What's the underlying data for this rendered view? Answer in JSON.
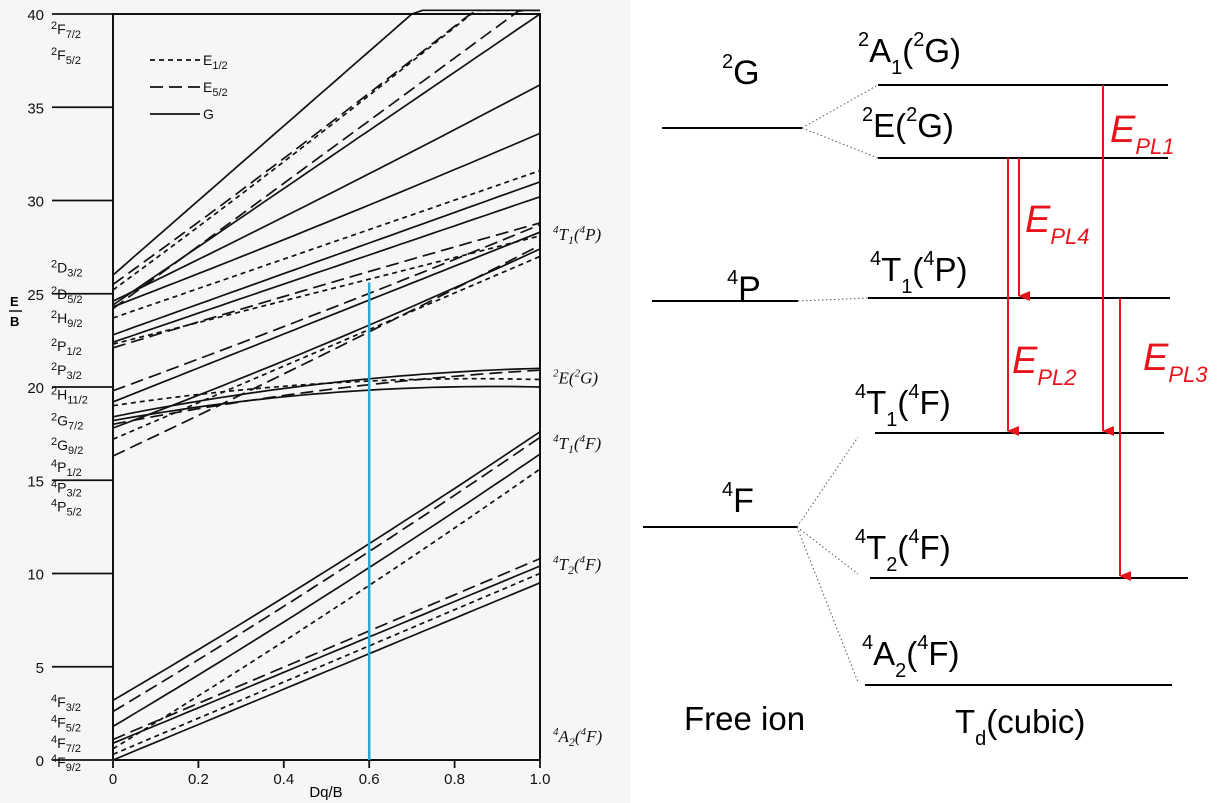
{
  "tanabe_sugano": {
    "y_axis": {
      "label_top": "E",
      "label_bottom": "B",
      "ticks": [
        "0",
        "5",
        "10",
        "15",
        "20",
        "25",
        "30",
        "35",
        "40"
      ],
      "range": [
        0,
        40
      ]
    },
    "x_axis": {
      "label": "Dq/B",
      "ticks": [
        "0",
        "0.2",
        "0.4",
        "0.6",
        "0.8",
        "1.0"
      ],
      "range": [
        0,
        1
      ]
    },
    "legend": [
      {
        "label": "E1/2",
        "style": "short-dash"
      },
      {
        "label": "E5/2",
        "style": "long-dash"
      },
      {
        "label": "G",
        "style": "solid"
      }
    ],
    "left_term_labels": [
      {
        "main": "2F",
        "sub": "7/2",
        "energy": 39.2
      },
      {
        "main": "2F",
        "sub": "5/2",
        "energy": 37.8
      },
      {
        "main": "2D",
        "sub": "3/2",
        "energy": 26.4
      },
      {
        "main": "2D",
        "sub": "5/2",
        "energy": 25.0
      },
      {
        "main": "2H",
        "sub": "9/2",
        "energy": 23.7
      },
      {
        "main": "2P",
        "sub": "1/2",
        "energy": 22.2
      },
      {
        "main": "2P",
        "sub": "3/2",
        "energy": 20.9
      },
      {
        "main": "2H",
        "sub": "11/2",
        "energy": 19.6
      },
      {
        "main": "2G",
        "sub": "7/2",
        "energy": 18.2
      },
      {
        "main": "2G",
        "sub": "9/2",
        "energy": 16.9
      },
      {
        "main": "4P",
        "sub": "1/2",
        "energy": 15.7
      },
      {
        "main": "4P",
        "sub": "3/2",
        "energy": 14.6
      },
      {
        "main": "4P",
        "sub": "5/2",
        "energy": 13.6
      },
      {
        "main": "4F",
        "sub": "3/2",
        "energy": 3.1
      },
      {
        "main": "4F",
        "sub": "5/2",
        "energy": 2.0
      },
      {
        "main": "4F",
        "sub": "7/2",
        "energy": 0.9
      },
      {
        "main": "4F",
        "sub": "9/2",
        "energy": -0.1
      }
    ],
    "right_term_labels": [
      {
        "sup1": "4",
        "term": "T",
        "sub": "1",
        "sup2": "4",
        "parent": "P",
        "energy": 28.2
      },
      {
        "sup1": "2",
        "term": "E",
        "sub": "",
        "sup2": "2",
        "parent": "G",
        "energy": 20.5
      },
      {
        "sup1": "4",
        "term": "T",
        "sub": "1",
        "sup2": "4",
        "parent": "F",
        "energy": 17.0
      },
      {
        "sup1": "4",
        "term": "T",
        "sub": "2",
        "sup2": "4",
        "parent": "F",
        "energy": 10.5
      },
      {
        "sup1": "4",
        "term": "A",
        "sub": "2",
        "sup2": "4",
        "parent": "F",
        "energy": 1.3
      }
    ],
    "marker_line": {
      "dq_b": 0.6,
      "y_top": 25.6,
      "y_bottom": 0,
      "color": "#2aa7d6"
    }
  },
  "energy_diagram": {
    "free_ion_label": "Free ion",
    "td_label": "T",
    "td_sub": "d",
    "td_rest": "(cubic)",
    "free_ion_levels": [
      {
        "sup": "2",
        "term": "G"
      },
      {
        "sup": "4",
        "term": "P"
      },
      {
        "sup": "4",
        "term": "F"
      }
    ],
    "crystal_levels": [
      {
        "sup1": "2",
        "term": "A",
        "sub": "1",
        "sup2": "2",
        "parent": "G"
      },
      {
        "sup1": "2",
        "term": "E",
        "sub": "",
        "sup2": "2",
        "parent": "G"
      },
      {
        "sup1": "4",
        "term": "T",
        "sub": "1",
        "sup2": "4",
        "parent": "P"
      },
      {
        "sup1": "4",
        "term": "T",
        "sub": "1",
        "sup2": "4",
        "parent": "F"
      },
      {
        "sup1": "4",
        "term": "T",
        "sub": "2",
        "sup2": "4",
        "parent": "F"
      },
      {
        "sup1": "4",
        "term": "A",
        "sub": "2",
        "sup2": "4",
        "parent": "F"
      }
    ],
    "transitions": [
      {
        "name": "E",
        "sub": "PL1"
      },
      {
        "name": "E",
        "sub": "PL4"
      },
      {
        "name": "E",
        "sub": "PL2"
      },
      {
        "name": "E",
        "sub": "PL3"
      }
    ],
    "arrow_color": "#e8141b"
  }
}
